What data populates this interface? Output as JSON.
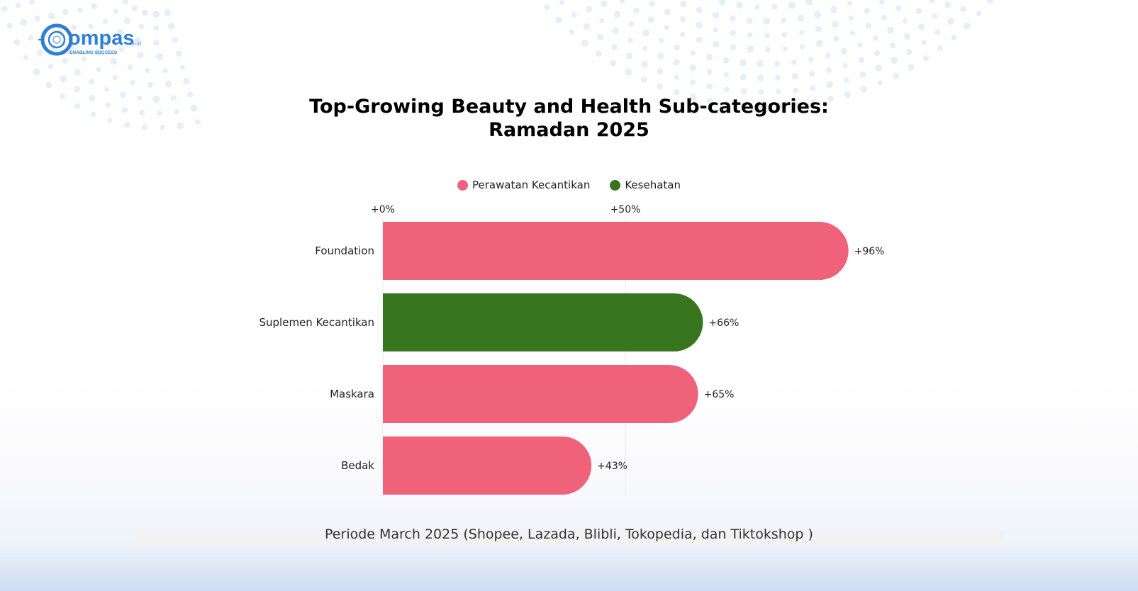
{
  "brand": {
    "logo_text": "ompas",
    "logo_domain": ".co.id",
    "logo_tagline": "ENABLING SUCCESS"
  },
  "title": {
    "line1": "Top-Growing Beauty and Health Sub-categories:",
    "line2": "Ramadan 2025"
  },
  "footnote": "Periode March 2025 (Shopee, Lazada, Blibli, Tokopedia, dan Tiktokshop )",
  "colors": {
    "perawatan": "#ef627a",
    "kesehatan": "#38751f",
    "brand_blue": "#2f7fd6",
    "gridline": "#e8e8e8"
  },
  "chart_data": {
    "type": "bar",
    "orientation": "horizontal",
    "categories": [
      "Foundation",
      "Suplemen Kecantikan",
      "Maskara",
      "Bedak"
    ],
    "values": [
      96,
      66,
      65,
      43
    ],
    "value_labels": [
      "+96%",
      "+66%",
      "+65%",
      "+43%"
    ],
    "groups": [
      "Perawatan Kecantikan",
      "Kesehatan",
      "Perawatan Kecantikan",
      "Perawatan Kecantikan"
    ],
    "legend": [
      {
        "name": "Perawatan Kecantikan",
        "color": "#ef627a"
      },
      {
        "name": "Kesehatan",
        "color": "#38751f"
      }
    ],
    "legend_position": "top-center",
    "x_ticks": [
      0,
      50
    ],
    "x_tick_labels": [
      "+0%",
      "+50%"
    ],
    "x_axis_position": "top",
    "xlim": [
      0,
      100
    ],
    "grid": true
  }
}
